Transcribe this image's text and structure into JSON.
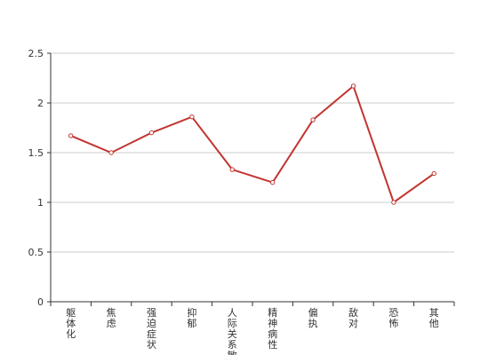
{
  "chart_data": {
    "type": "line",
    "categories": [
      "躯体化",
      "焦虑",
      "强迫症状",
      "抑郁",
      "人际关系敏感",
      "精神病性",
      "偏执",
      "敌对",
      "恐怖",
      "其他"
    ],
    "series": [
      {
        "color": "#c23531",
        "values": [
          1.67,
          1.5,
          1.7,
          1.86,
          1.33,
          1.2,
          1.83,
          2.17,
          1.0,
          1.29
        ]
      }
    ],
    "ylim": [
      0,
      2.5
    ],
    "yticks": [
      0,
      0.5,
      1,
      1.5,
      2,
      2.5
    ],
    "grid": true
  }
}
